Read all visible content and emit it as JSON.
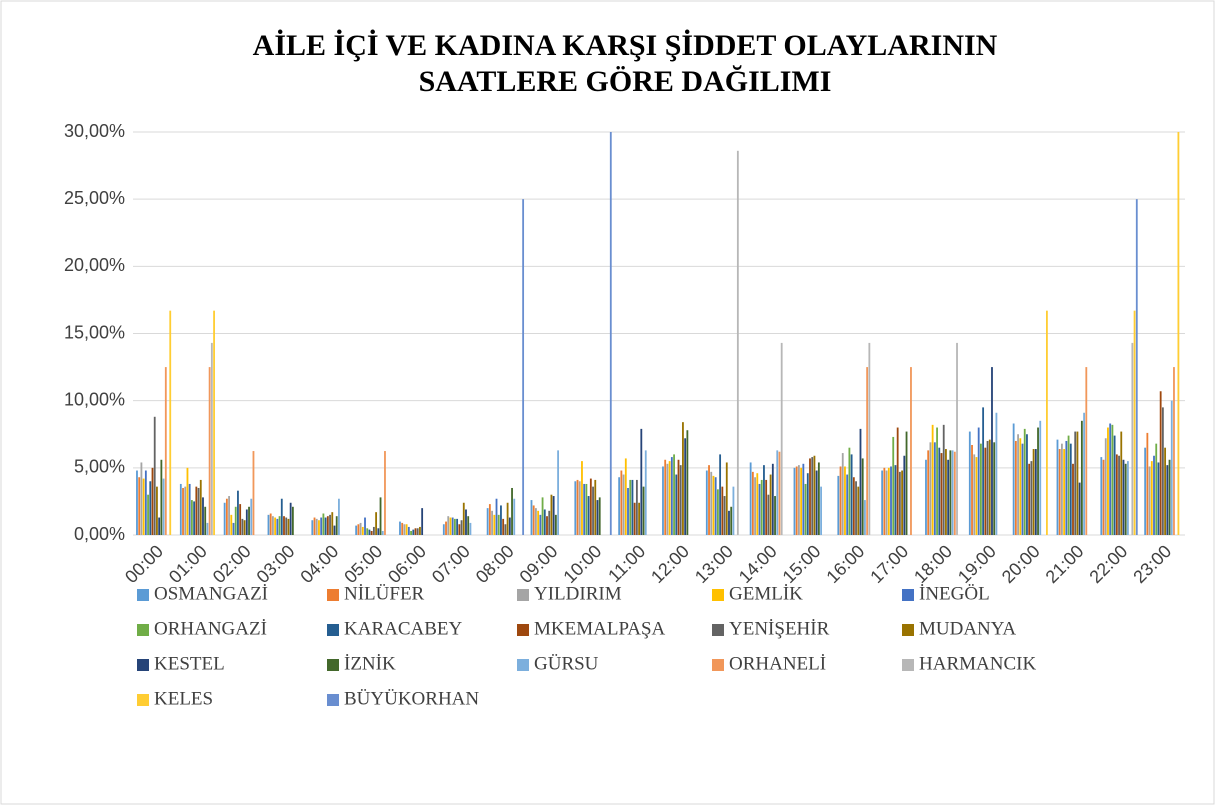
{
  "chart_data": {
    "type": "bar",
    "title": [
      "AİLE İÇİ VE KADINA KARŞI ŞİDDET OLAYLARININ",
      "SAATLERE GÖRE DAĞILIMI"
    ],
    "categories": [
      "00:00",
      "01:00",
      "02:00",
      "03:00",
      "04:00",
      "05:00",
      "06:00",
      "07:00",
      "08:00",
      "09:00",
      "10:00",
      "11:00",
      "12:00",
      "13:00",
      "14:00",
      "15:00",
      "16:00",
      "17:00",
      "18:00",
      "19:00",
      "20:00",
      "21:00",
      "22:00",
      "23:00"
    ],
    "ylim": [
      0,
      30
    ],
    "yticks": [
      {
        "value": 0,
        "label": "0,00%"
      },
      {
        "value": 5,
        "label": "5,00%"
      },
      {
        "value": 10,
        "label": "10,00%"
      },
      {
        "value": 15,
        "label": "15,00%"
      },
      {
        "value": 20,
        "label": "20,00%"
      },
      {
        "value": 25,
        "label": "25,00%"
      },
      {
        "value": 30,
        "label": "30,00%"
      }
    ],
    "grid": true,
    "legend": "bottom",
    "series": [
      {
        "name": "OSMANGAZİ",
        "color": "#5b9bd5",
        "values": [
          4.8,
          3.8,
          2.4,
          1.5,
          1.1,
          0.7,
          1.0,
          0.8,
          2.0,
          2.6,
          4.0,
          4.3,
          5.1,
          4.8,
          5.4,
          5.0,
          4.4,
          4.8,
          5.6,
          7.7,
          8.3,
          7.1,
          5.8,
          6.5
        ]
      },
      {
        "name": "NİLÜFER",
        "color": "#ed7d31",
        "values": [
          4.3,
          3.5,
          2.7,
          1.6,
          1.3,
          0.8,
          0.9,
          1.0,
          2.3,
          2.2,
          4.1,
          4.8,
          5.6,
          5.2,
          4.7,
          5.1,
          5.1,
          5.0,
          6.3,
          6.7,
          7.0,
          6.4,
          5.6,
          7.6
        ]
      },
      {
        "name": "YILDIRIM",
        "color": "#a5a5a5",
        "values": [
          5.4,
          3.6,
          2.9,
          1.4,
          1.2,
          0.9,
          0.8,
          1.4,
          1.8,
          2.0,
          4.0,
          4.5,
          5.3,
          4.7,
          4.3,
          5.2,
          6.1,
          4.8,
          6.9,
          6.0,
          7.5,
          6.8,
          7.2,
          5.1
        ]
      },
      {
        "name": "GEMLİK",
        "color": "#ffc000",
        "values": [
          4.2,
          5.0,
          1.5,
          1.3,
          1.1,
          0.6,
          0.8,
          1.3,
          1.5,
          1.8,
          5.5,
          5.7,
          5.5,
          4.4,
          4.6,
          5.0,
          5.1,
          5.0,
          8.2,
          5.8,
          7.2,
          6.4,
          8.0,
          5.5
        ]
      },
      {
        "name": "İNEGÖL",
        "color": "#4472c4",
        "values": [
          4.8,
          3.8,
          0.9,
          1.2,
          1.3,
          1.3,
          0.6,
          1.3,
          2.7,
          1.5,
          3.8,
          3.5,
          5.8,
          4.3,
          3.8,
          5.3,
          4.5,
          5.1,
          6.9,
          8.0,
          6.8,
          7.0,
          8.3,
          5.9
        ]
      },
      {
        "name": "ORHANGAZİ",
        "color": "#70ad47",
        "values": [
          3.0,
          2.6,
          2.1,
          1.4,
          1.6,
          0.5,
          0.3,
          1.2,
          1.5,
          2.8,
          3.8,
          4.1,
          6.0,
          3.4,
          4.1,
          3.8,
          6.5,
          7.3,
          8.0,
          6.8,
          7.9,
          7.4,
          8.2,
          6.8
        ]
      },
      {
        "name": "KARACABEY",
        "color": "#255e91",
        "values": [
          4.0,
          2.5,
          3.3,
          2.7,
          1.3,
          0.4,
          0.4,
          1.2,
          2.2,
          1.9,
          2.9,
          4.1,
          4.5,
          6.0,
          5.2,
          4.6,
          6.0,
          5.2,
          6.5,
          9.5,
          7.5,
          6.8,
          7.4,
          5.4
        ]
      },
      {
        "name": "MKEMALPAŞA",
        "color": "#9e480e",
        "values": [
          5.0,
          3.6,
          2.3,
          1.4,
          1.4,
          0.3,
          0.5,
          0.8,
          1.2,
          1.4,
          4.2,
          2.4,
          5.6,
          3.6,
          4.1,
          5.7,
          4.3,
          8.0,
          6.1,
          6.5,
          5.3,
          5.3,
          6.0,
          10.7
        ]
      },
      {
        "name": "YENİŞEHİR",
        "color": "#636363",
        "values": [
          8.8,
          3.5,
          1.2,
          1.3,
          1.5,
          0.6,
          0.5,
          1.1,
          0.8,
          1.8,
          3.6,
          4.1,
          5.2,
          2.9,
          3.0,
          5.8,
          4.0,
          4.7,
          8.2,
          7.0,
          5.5,
          7.7,
          5.9,
          9.5
        ]
      },
      {
        "name": "MUDANYA",
        "color": "#997300",
        "values": [
          3.6,
          4.1,
          1.1,
          1.2,
          1.7,
          1.7,
          0.6,
          2.4,
          2.4,
          3.0,
          4.1,
          2.4,
          8.4,
          5.4,
          4.5,
          5.9,
          3.6,
          4.8,
          6.4,
          7.1,
          6.4,
          7.7,
          7.7,
          6.5
        ]
      },
      {
        "name": "KESTEL",
        "color": "#264478",
        "values": [
          1.3,
          2.8,
          1.9,
          2.4,
          0.7,
          0.5,
          2.0,
          1.9,
          1.3,
          2.9,
          2.6,
          7.9,
          7.2,
          1.8,
          5.3,
          4.8,
          7.9,
          5.9,
          5.6,
          12.5,
          6.4,
          3.9,
          5.6,
          5.2
        ]
      },
      {
        "name": "İZNİK",
        "color": "#43682b",
        "values": [
          5.6,
          2.1,
          2.1,
          2.1,
          1.4,
          2.8,
          0,
          1.4,
          3.5,
          1.5,
          2.8,
          3.6,
          7.8,
          2.1,
          2.9,
          5.4,
          5.7,
          7.7,
          6.3,
          6.9,
          8.0,
          8.5,
          5.3,
          5.6
        ]
      },
      {
        "name": "GÜRSU",
        "color": "#7cafdd",
        "values": [
          4.2,
          0.9,
          2.7,
          0,
          2.7,
          0.3,
          0,
          0.9,
          2.7,
          6.3,
          0,
          6.3,
          0,
          3.6,
          6.3,
          3.6,
          2.6,
          0,
          6.3,
          9.1,
          8.5,
          9.1,
          5.5,
          10.0
        ]
      },
      {
        "name": "ORHANELİ",
        "color": "#f1975a",
        "values": [
          12.5,
          12.5,
          6.25,
          0,
          0,
          6.25,
          0,
          0,
          0,
          0,
          0,
          0,
          0,
          0,
          6.2,
          0,
          12.5,
          12.5,
          6.2,
          0,
          0,
          12.5,
          0,
          12.5
        ]
      },
      {
        "name": "HARMANCIK",
        "color": "#b7b7b7",
        "values": [
          0,
          14.3,
          0,
          0,
          0,
          0,
          0,
          0,
          0,
          0,
          0,
          0,
          0,
          28.6,
          14.3,
          0,
          14.3,
          0,
          14.3,
          0,
          0,
          0,
          14.3,
          0
        ]
      },
      {
        "name": "KELES",
        "color": "#ffcd33",
        "values": [
          16.7,
          16.7,
          0,
          0,
          0,
          0,
          0,
          0,
          0,
          0,
          0,
          0,
          0,
          0,
          0,
          0,
          0,
          0,
          0,
          0,
          16.7,
          0,
          16.7,
          30
        ]
      },
      {
        "name": "BÜYÜKORHAN",
        "color": "#698ed0",
        "values": [
          0,
          0,
          0,
          0,
          0,
          0,
          0,
          0,
          25,
          0,
          30,
          0,
          0,
          0,
          0,
          0,
          0,
          0,
          0,
          0,
          0,
          0,
          25,
          0
        ]
      }
    ]
  }
}
